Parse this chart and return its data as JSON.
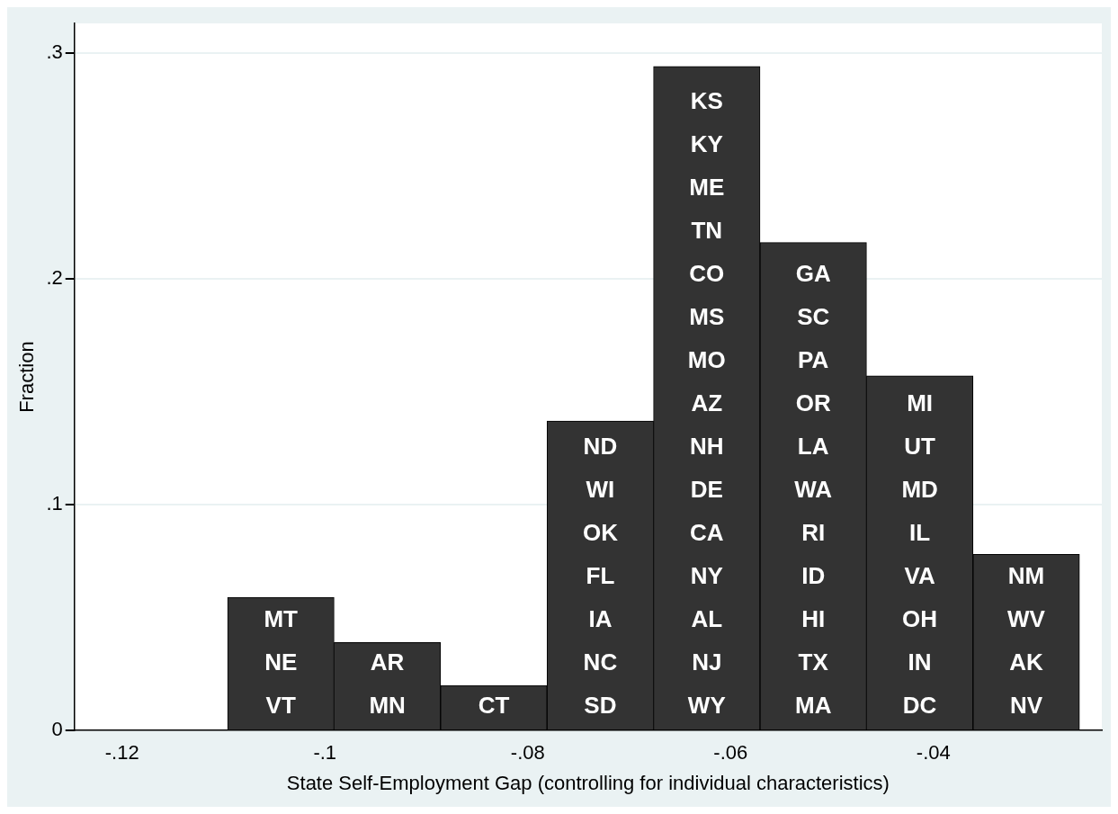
{
  "chart_data": {
    "type": "histogram",
    "xlabel": "State Self-Employment Gap (controlling for individual characteristics)",
    "ylabel": "Fraction",
    "bins": [
      -0.1096,
      -0.0991,
      -0.0886,
      -0.0781,
      -0.0676,
      -0.0571,
      -0.0466,
      -0.0361,
      -0.0256
    ],
    "values": [
      0.059,
      0.039,
      0.02,
      0.137,
      0.294,
      0.216,
      0.157,
      0.078
    ],
    "color": "#333333",
    "xlim": [
      -0.1247,
      -0.0234
    ],
    "ylim": [
      0,
      0.313
    ],
    "xticks": [
      {
        "value": -0.12,
        "label": "-.12"
      },
      {
        "value": -0.1,
        "label": "-.1"
      },
      {
        "value": -0.08,
        "label": "-.08"
      },
      {
        "value": -0.06,
        "label": "-.06"
      },
      {
        "value": -0.04,
        "label": "-.04"
      }
    ],
    "yticks": [
      0,
      {
        "value": 0.1,
        "label": ".1"
      },
      {
        "value": 0.2,
        "label": ".2"
      },
      {
        "value": 0.3,
        "label": ".3"
      }
    ],
    "grid": "y",
    "legend": false,
    "annotations": [
      "MT",
      "NE",
      "VT",
      "AR",
      "MN",
      "CT",
      "ND",
      "WI",
      "OK",
      "FL",
      "IA",
      "NC",
      "SD",
      "KS",
      "KY",
      "ME",
      "TN",
      "CO",
      "MS",
      "MO",
      "AZ",
      "NH",
      "DE",
      "CA",
      "NY",
      "AL",
      "NJ",
      "WY",
      "GA",
      "SC",
      "PA",
      "OR",
      "LA",
      "WA",
      "RI",
      "ID",
      "HI",
      "TX",
      "MA",
      "MI",
      "UT",
      "MD",
      "IL",
      "VA",
      "OH",
      "IN",
      "DC",
      "NM",
      "WV",
      "AK",
      "NV"
    ]
  }
}
